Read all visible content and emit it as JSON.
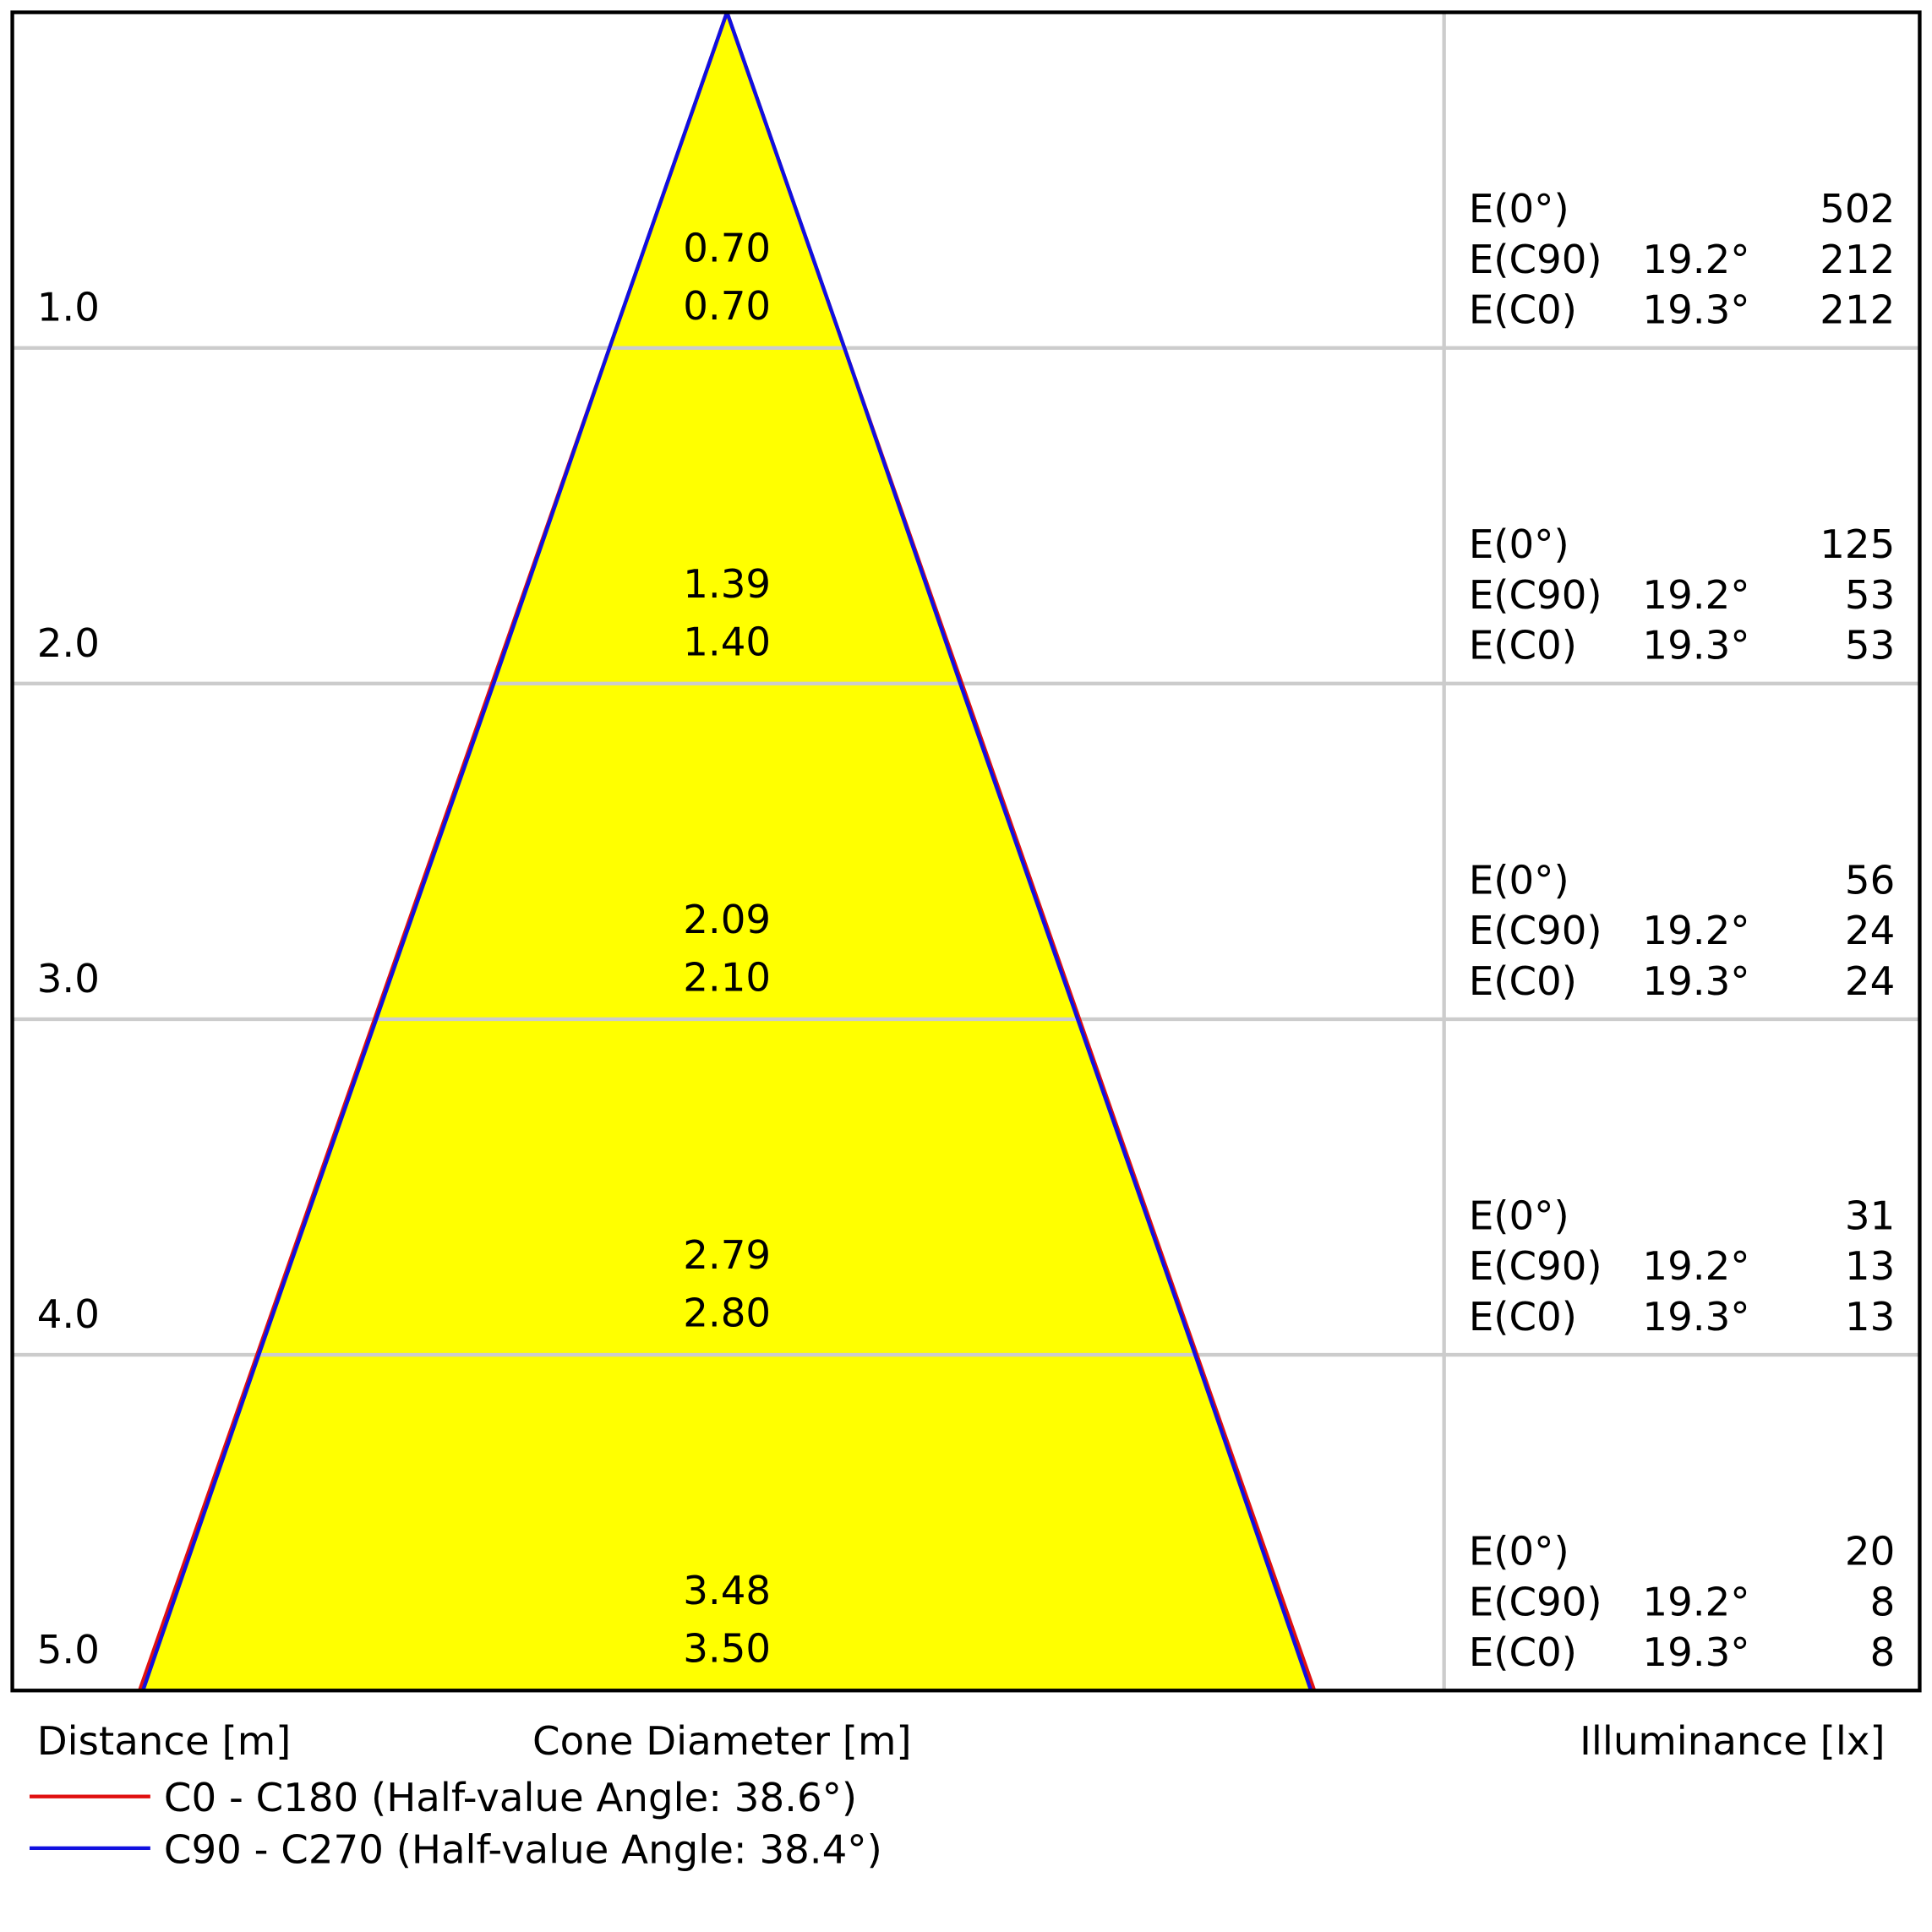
{
  "chart_data": {
    "type": "cone",
    "distances": [
      {
        "value": 1,
        "label": "1.0"
      },
      {
        "value": 2,
        "label": "2.0"
      },
      {
        "value": 3,
        "label": "3.0"
      },
      {
        "value": 4,
        "label": "4.0"
      },
      {
        "value": 5,
        "label": "5.0"
      }
    ],
    "series": [
      {
        "name": "C90 - C270 (Half-value Angle: 38.4°)",
        "color": "#1010e0",
        "values": [
          0.7,
          1.39,
          2.09,
          2.79,
          3.48
        ],
        "value_labels": [
          "0.70",
          "1.39",
          "2.09",
          "2.79",
          "3.48"
        ]
      },
      {
        "name": "C0 - C180 (Half-value Angle: 38.6°)",
        "color": "#e01010",
        "values": [
          0.7,
          1.4,
          2.1,
          2.8,
          3.5
        ],
        "value_labels": [
          "0.70",
          "1.40",
          "2.10",
          "2.80",
          "3.50"
        ]
      }
    ],
    "fill_color": "#ffff00",
    "illuminance_labels": [
      "E(0°)",
      "E(C90)",
      "E(C0)"
    ],
    "illuminance": [
      {
        "e0": 502,
        "ec90_angle": "19.2°",
        "ec90": 212,
        "ec0_angle": "19.3°",
        "ec0": 212
      },
      {
        "e0": 125,
        "ec90_angle": "19.2°",
        "ec90": 53,
        "ec0_angle": "19.3°",
        "ec0": 53
      },
      {
        "e0": 56,
        "ec90_angle": "19.2°",
        "ec90": 24,
        "ec0_angle": "19.3°",
        "ec0": 24
      },
      {
        "e0": 31,
        "ec90_angle": "19.2°",
        "ec90": 13,
        "ec0_angle": "19.3°",
        "ec0": 13
      },
      {
        "e0": 20,
        "ec90_angle": "19.2°",
        "ec90": 8,
        "ec0_angle": "19.3°",
        "ec0": 8
      }
    ],
    "xlabel": "Distance [m]",
    "cone_label": "Cone Diameter [m]",
    "illuminance_title": "Illuminance [lx]"
  }
}
